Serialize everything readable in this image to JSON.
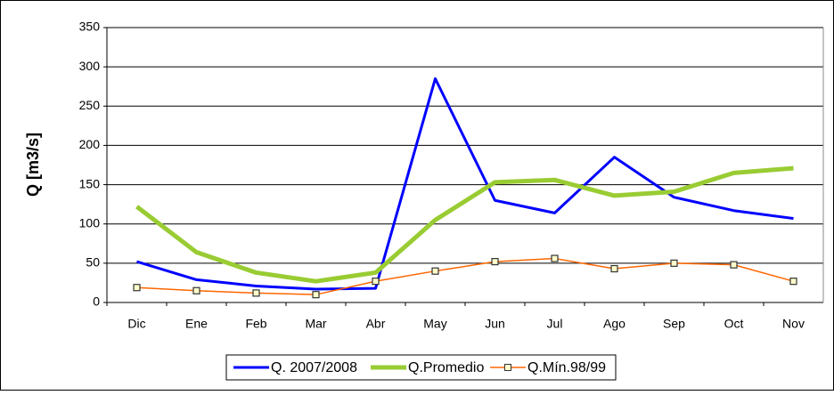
{
  "chart_data": {
    "type": "line",
    "y_label": "Q [m3/s]",
    "categories": [
      "Dic",
      "Ene",
      "Feb",
      "Mar",
      "Abr",
      "May",
      "Jun",
      "Jul",
      "Ago",
      "Sep",
      "Oct",
      "Nov"
    ],
    "series": [
      {
        "name": "Q. 2007/2008",
        "color": "#0000ff",
        "width": 3,
        "marker": false,
        "values": [
          52,
          29,
          21,
          17,
          18,
          285,
          130,
          114,
          185,
          134,
          117,
          107
        ]
      },
      {
        "name": "Q.Promedio",
        "color": "#99cc33",
        "width": 5,
        "marker": false,
        "values": [
          122,
          64,
          38,
          27,
          38,
          105,
          153,
          156,
          136,
          141,
          165,
          171
        ]
      },
      {
        "name": "Q.Mín.98/99",
        "color": "#ff6600",
        "width": 1.5,
        "marker": true,
        "values": [
          19,
          15,
          12,
          10,
          27,
          40,
          52,
          56,
          43,
          50,
          48,
          27
        ]
      }
    ],
    "ylim": [
      0,
      350
    ],
    "yticks": [
      0,
      50,
      100,
      150,
      200,
      250,
      300,
      350
    ],
    "grid": true,
    "legend": "bottom"
  }
}
